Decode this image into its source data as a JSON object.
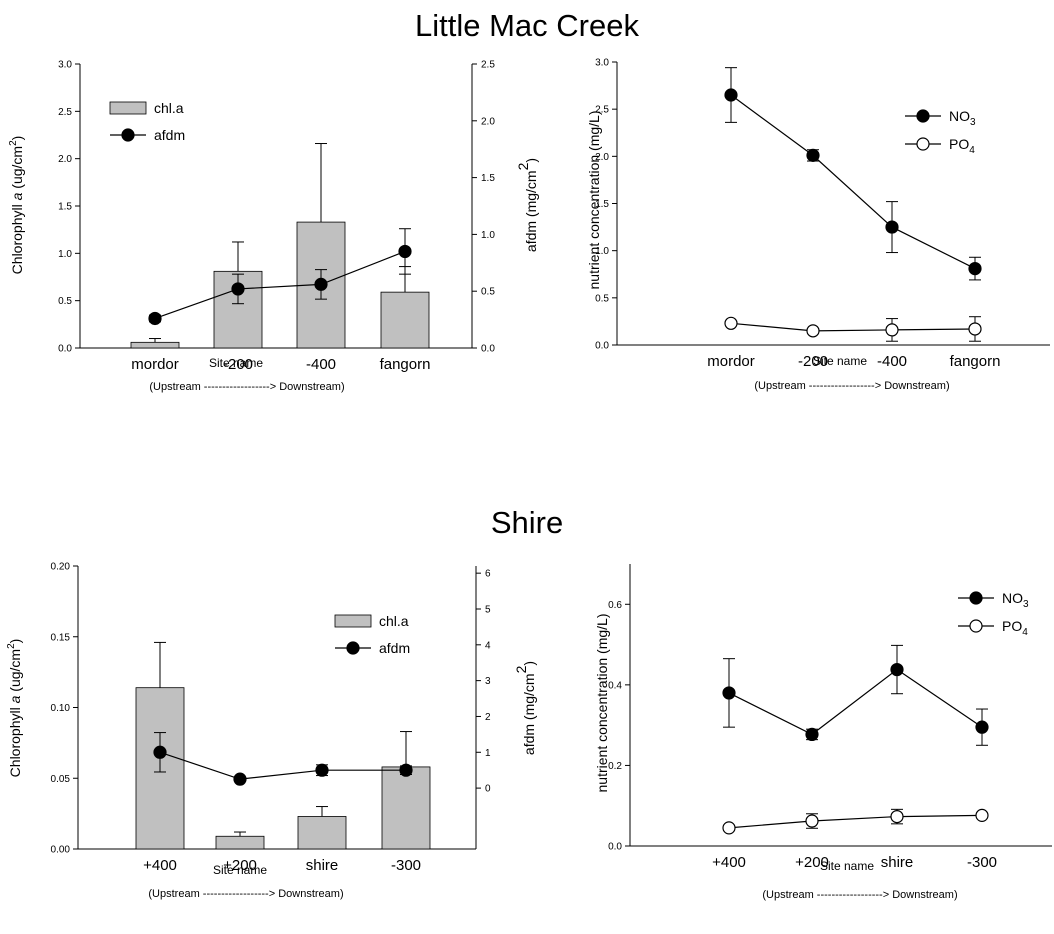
{
  "headings": {
    "top": "Little Mac Creek",
    "bottom": "Shire"
  },
  "colors": {
    "bar": "#c0c0c0",
    "line": "#000000",
    "filled_marker": "#000000",
    "open_marker": "#ffffff"
  },
  "chart_data": [
    {
      "type": "bar+line",
      "group": "Little Mac Creek",
      "categories": [
        "mordor",
        "-200",
        "-400",
        "fangorn"
      ],
      "xlabel": "Site name",
      "xnote": "(Upstream ------------------> Downstream)",
      "ylabel_left": {
        "pre": "Chlorophyll ",
        "it": "a",
        "post": " (ug/cm",
        "sup": "2",
        "end": ")"
      },
      "ylabel_right": {
        "main": "afdm (mg/cm",
        "sup": "2",
        "end": ")"
      },
      "ylim_left": [
        0,
        3.0
      ],
      "yticks_left": [
        "0.0",
        "0.5",
        "1.0",
        "1.5",
        "2.0",
        "2.5",
        "3.0"
      ],
      "ylim_right": [
        0,
        2.5
      ],
      "yticks_right": [
        "0.0",
        "0.5",
        "1.0",
        "1.5",
        "2.0",
        "2.5"
      ],
      "legend": {
        "position": "top-left",
        "entries": [
          {
            "name": "chl.a",
            "kind": "bar"
          },
          {
            "name": "afdm",
            "kind": "filled"
          }
        ]
      },
      "bars": {
        "name": "chl.a",
        "values": [
          0.06,
          0.81,
          1.33,
          0.59
        ],
        "err": [
          0.04,
          0.31,
          0.83,
          0.27
        ]
      },
      "series": [
        {
          "name": "afdm",
          "axis": "right",
          "marker": "filled",
          "values": [
            0.26,
            0.52,
            0.56,
            0.85
          ],
          "err": [
            0.03,
            0.13,
            0.13,
            0.2
          ]
        }
      ]
    },
    {
      "type": "line",
      "group": "Little Mac Creek",
      "categories": [
        "mordor",
        "-200",
        "-400",
        "fangorn"
      ],
      "xlabel": "Site name",
      "xnote": "(Upstream ------------------> Downstream)",
      "ylabel_left": {
        "pre": "nutrient concentration (mg/L)",
        "it": "",
        "post": "",
        "sup": "",
        "end": ""
      },
      "ylim_left": [
        0,
        3.0
      ],
      "yticks_left": [
        "0.0",
        "0.5",
        "1.0",
        "1.5",
        "2.0",
        "2.5",
        "3.0"
      ],
      "legend": {
        "position": "top-right",
        "entries": [
          {
            "name": "NO",
            "sub": "3",
            "kind": "filled"
          },
          {
            "name": "PO",
            "sub": "4",
            "kind": "open"
          }
        ]
      },
      "series": [
        {
          "name": "NO3",
          "axis": "left",
          "marker": "filled",
          "values": [
            2.65,
            2.01,
            1.25,
            0.81
          ],
          "err": [
            0.29,
            0.06,
            0.27,
            0.12
          ]
        },
        {
          "name": "PO4",
          "axis": "left",
          "marker": "open",
          "values": [
            0.23,
            0.15,
            0.16,
            0.17
          ],
          "err": [
            0.0,
            0.0,
            0.12,
            0.13
          ]
        }
      ]
    },
    {
      "type": "bar+line",
      "group": "Shire",
      "categories": [
        "+400",
        "+200",
        "shire",
        "-300"
      ],
      "xlabel": "Site name",
      "xnote": "(Upstream ------------------> Downstream)",
      "ylabel_left": {
        "pre": "Chlorophyll ",
        "it": "a",
        "post": " (ug/cm",
        "sup": "2",
        "end": ")"
      },
      "ylabel_right": {
        "main": "afdm (mg/cm",
        "sup": "2",
        "end": ")"
      },
      "ylim_left": [
        0,
        0.2
      ],
      "yticks_left": [
        "0.00",
        "0.05",
        "0.10",
        "0.15",
        "0.20"
      ],
      "ylim_right": [
        -1.7,
        6.2
      ],
      "yticks_right": [
        "0",
        "1",
        "2",
        "3",
        "4",
        "5",
        "6"
      ],
      "legend": {
        "position": "top-right",
        "entries": [
          {
            "name": "chl.a",
            "kind": "bar"
          },
          {
            "name": "afdm",
            "kind": "filled"
          }
        ]
      },
      "bars": {
        "name": "chl.a",
        "values": [
          0.114,
          0.009,
          0.023,
          0.058
        ],
        "err": [
          0.032,
          0.003,
          0.007,
          0.025
        ]
      },
      "series": [
        {
          "name": "afdm",
          "axis": "right",
          "marker": "filled",
          "values": [
            1.0,
            0.25,
            0.5,
            0.5
          ],
          "err": [
            0.55,
            0.05,
            0.15,
            0.12
          ]
        }
      ]
    },
    {
      "type": "line",
      "group": "Shire",
      "categories": [
        "+400",
        "+200",
        "shire",
        "-300"
      ],
      "xlabel": "Site name",
      "xnote": "(Upstream ------------------> Downstream)",
      "ylabel_left": {
        "pre": "nutrient concentration (mg/L)",
        "it": "",
        "post": "",
        "sup": "",
        "end": ""
      },
      "ylim_left": [
        0,
        0.7
      ],
      "yticks_left": [
        "0.0",
        "0.2",
        "0.4",
        "0.6"
      ],
      "legend": {
        "position": "top-right",
        "entries": [
          {
            "name": "NO",
            "sub": "3",
            "kind": "filled"
          },
          {
            "name": "PO",
            "sub": "4",
            "kind": "open"
          }
        ]
      },
      "series": [
        {
          "name": "NO3",
          "axis": "left",
          "marker": "filled",
          "values": [
            0.38,
            0.277,
            0.438,
            0.295
          ],
          "err": [
            0.085,
            0.013,
            0.06,
            0.045
          ]
        },
        {
          "name": "PO4",
          "axis": "left",
          "marker": "open",
          "values": [
            0.045,
            0.062,
            0.073,
            0.076
          ],
          "err": [
            0.0,
            0.018,
            0.018,
            0.0
          ]
        }
      ]
    }
  ]
}
